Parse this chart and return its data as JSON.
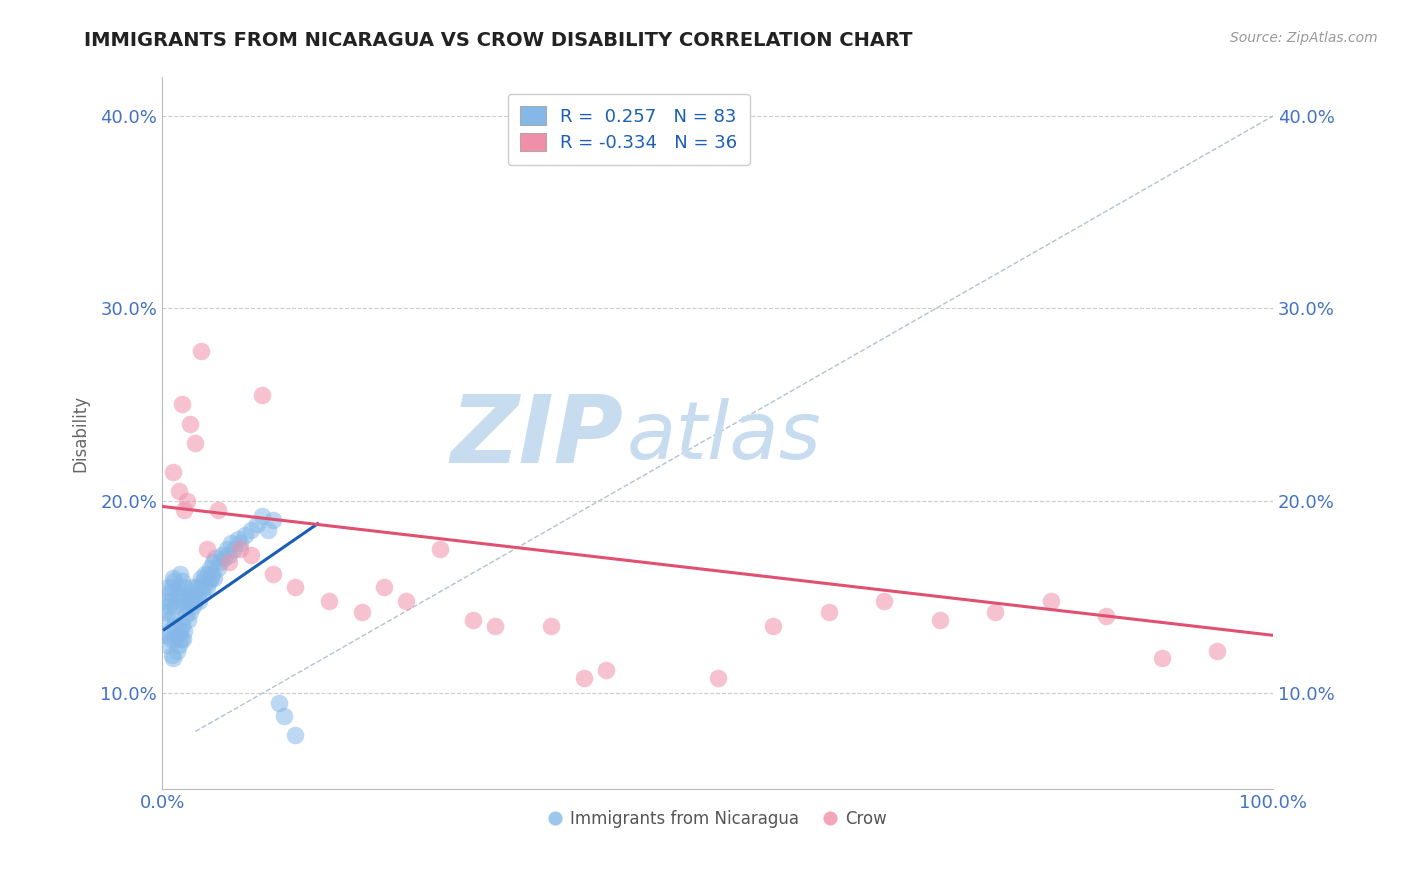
{
  "title": "IMMIGRANTS FROM NICARAGUA VS CROW DISABILITY CORRELATION CHART",
  "source_text": "Source: ZipAtlas.com",
  "ylabel": "Disability",
  "xlim": [
    0.0,
    1.0
  ],
  "ylim": [
    0.05,
    0.42
  ],
  "xtick_positions": [
    0.0,
    0.25,
    0.5,
    0.75,
    1.0
  ],
  "xtick_labels": [
    "0.0%",
    "",
    "",
    "",
    "100.0%"
  ],
  "ytick_values": [
    0.1,
    0.2,
    0.3,
    0.4
  ],
  "ytick_labels": [
    "10.0%",
    "20.0%",
    "30.0%",
    "40.0%"
  ],
  "legend_r_blue": "0.257",
  "legend_n_blue": "83",
  "legend_r_pink": "-0.334",
  "legend_n_pink": "36",
  "blue_color": "#85B8E8",
  "pink_color": "#F090A8",
  "blue_line_color": "#1A5FB4",
  "pink_line_color": "#E05070",
  "title_color": "#222222",
  "axis_label_color": "#666666",
  "tick_label_color": "#4472C4",
  "grid_color": "#CCCCCC",
  "watermark_zip_color": "#C5D8EE",
  "watermark_atlas_color": "#C5D8EE",
  "legend_text_color": "#1A5FB4",
  "blue_scatter_x": [
    0.001,
    0.002,
    0.003,
    0.004,
    0.005,
    0.005,
    0.006,
    0.007,
    0.007,
    0.008,
    0.008,
    0.009,
    0.009,
    0.01,
    0.01,
    0.01,
    0.011,
    0.011,
    0.012,
    0.012,
    0.013,
    0.013,
    0.014,
    0.014,
    0.015,
    0.015,
    0.016,
    0.016,
    0.017,
    0.017,
    0.018,
    0.018,
    0.019,
    0.019,
    0.02,
    0.02,
    0.021,
    0.022,
    0.023,
    0.024,
    0.025,
    0.026,
    0.027,
    0.028,
    0.029,
    0.03,
    0.031,
    0.032,
    0.033,
    0.034,
    0.035,
    0.036,
    0.037,
    0.038,
    0.039,
    0.04,
    0.041,
    0.042,
    0.043,
    0.044,
    0.045,
    0.046,
    0.047,
    0.048,
    0.05,
    0.052,
    0.054,
    0.056,
    0.058,
    0.06,
    0.062,
    0.065,
    0.068,
    0.07,
    0.075,
    0.08,
    0.085,
    0.09,
    0.095,
    0.1,
    0.105,
    0.11,
    0.12
  ],
  "blue_scatter_y": [
    0.148,
    0.142,
    0.13,
    0.125,
    0.138,
    0.155,
    0.145,
    0.132,
    0.152,
    0.128,
    0.148,
    0.12,
    0.155,
    0.118,
    0.14,
    0.16,
    0.135,
    0.158,
    0.128,
    0.145,
    0.122,
    0.152,
    0.13,
    0.148,
    0.125,
    0.155,
    0.132,
    0.162,
    0.128,
    0.15,
    0.135,
    0.158,
    0.128,
    0.148,
    0.132,
    0.155,
    0.14,
    0.145,
    0.138,
    0.15,
    0.142,
    0.148,
    0.155,
    0.145,
    0.152,
    0.148,
    0.155,
    0.15,
    0.148,
    0.155,
    0.16,
    0.152,
    0.158,
    0.155,
    0.162,
    0.155,
    0.162,
    0.158,
    0.165,
    0.16,
    0.162,
    0.168,
    0.16,
    0.17,
    0.165,
    0.168,
    0.172,
    0.17,
    0.175,
    0.172,
    0.178,
    0.175,
    0.18,
    0.178,
    0.182,
    0.185,
    0.188,
    0.192,
    0.185,
    0.19,
    0.095,
    0.088,
    0.078
  ],
  "pink_scatter_x": [
    0.01,
    0.015,
    0.018,
    0.02,
    0.022,
    0.025,
    0.03,
    0.035,
    0.04,
    0.05,
    0.06,
    0.07,
    0.08,
    0.09,
    0.1,
    0.12,
    0.15,
    0.18,
    0.2,
    0.22,
    0.25,
    0.28,
    0.3,
    0.35,
    0.38,
    0.4,
    0.5,
    0.55,
    0.6,
    0.65,
    0.7,
    0.75,
    0.8,
    0.85,
    0.9,
    0.95
  ],
  "pink_scatter_y": [
    0.215,
    0.205,
    0.25,
    0.195,
    0.2,
    0.24,
    0.23,
    0.278,
    0.175,
    0.195,
    0.168,
    0.175,
    0.172,
    0.255,
    0.162,
    0.155,
    0.148,
    0.142,
    0.155,
    0.148,
    0.175,
    0.138,
    0.135,
    0.135,
    0.108,
    0.112,
    0.108,
    0.135,
    0.142,
    0.148,
    0.138,
    0.142,
    0.148,
    0.14,
    0.118,
    0.122
  ],
  "blue_trend_x": [
    0.002,
    0.14
  ],
  "blue_trend_y": [
    0.133,
    0.188
  ],
  "pink_trend_x": [
    0.0,
    1.0
  ],
  "pink_trend_y": [
    0.197,
    0.13
  ],
  "dashed_trend_x": [
    0.03,
    1.0
  ],
  "dashed_trend_y": [
    0.08,
    0.4
  ]
}
